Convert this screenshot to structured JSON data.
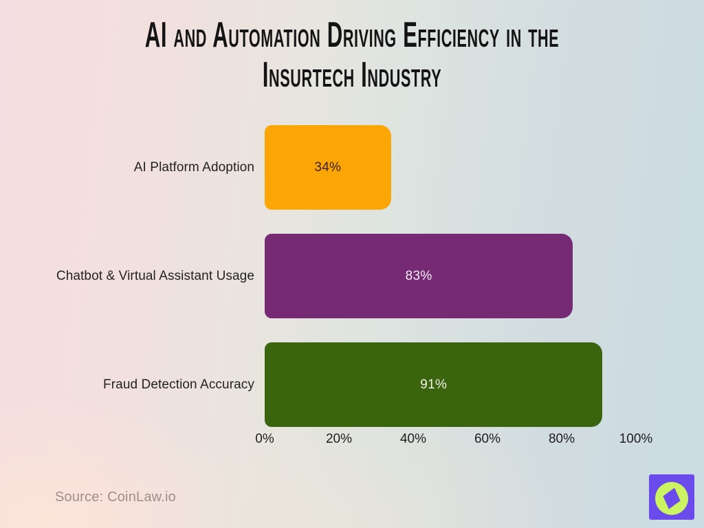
{
  "title": {
    "line1": "AI and Automation Driving Efficiency in the",
    "line2": "Insurtech Industry",
    "color": "#141414"
  },
  "source": {
    "label": "Source: CoinLaw.io",
    "color": "#9c8e89"
  },
  "logo": {
    "name": "coinlaw-compass-logo",
    "square_color": "#6b4beb",
    "circle_color": "#ccf462",
    "needle_color": "#6b4beb"
  },
  "background": {
    "left_color": "#f5dee1",
    "right_color": "#cbdce2"
  },
  "chart_data": {
    "type": "bar",
    "orientation": "horizontal",
    "title": "AI and Automation Driving Efficiency in the Insurtech Industry",
    "categories": [
      "AI Platform Adoption",
      "Chatbot & Virtual Assistant Usage",
      "Fraud Detection Accuracy"
    ],
    "values": [
      34,
      83,
      91
    ],
    "value_labels": [
      "34%",
      "83%",
      "91%"
    ],
    "bar_colors": [
      "#fca606",
      "#772a74",
      "#3a650e"
    ],
    "value_label_colors": [
      "#3a202c",
      "#f6eff2",
      "#f2f0e7"
    ],
    "x_ticks": [
      "0%",
      "20%",
      "40%",
      "60%",
      "80%",
      "100%"
    ],
    "x_tick_values": [
      0,
      20,
      40,
      60,
      80,
      100
    ],
    "xlim": [
      0,
      100
    ],
    "xlabel": "",
    "ylabel": "",
    "grid": false,
    "legend": false
  }
}
